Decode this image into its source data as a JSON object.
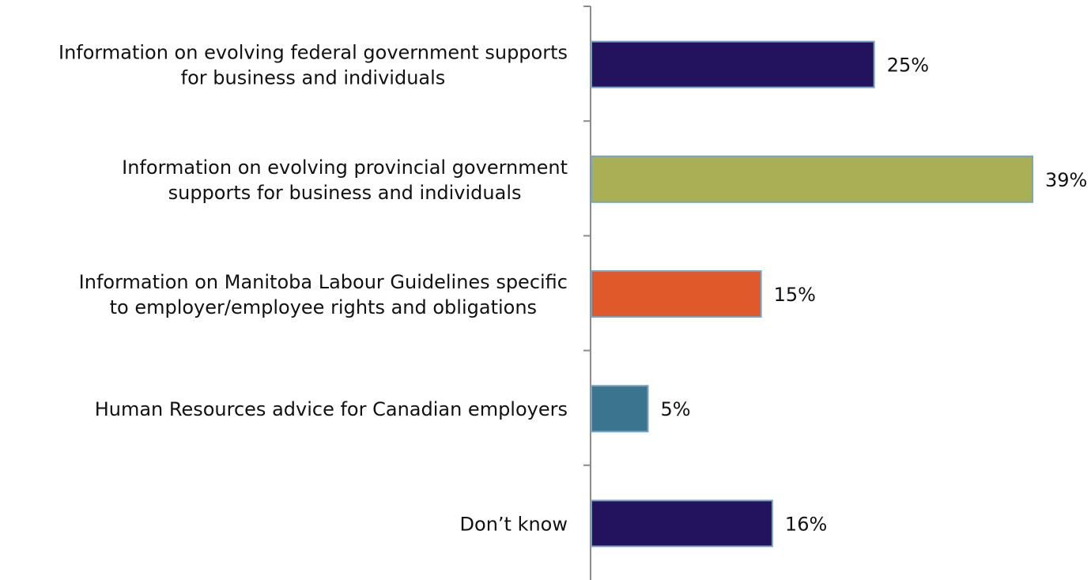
{
  "chart_data": {
    "type": "bar",
    "orientation": "horizontal",
    "categories": [
      [
        "Information on evolving federal government supports",
        "for business and individuals"
      ],
      [
        "Information on evolving provincial government",
        "supports for business and individuals"
      ],
      [
        "Information on Manitoba Labour Guidelines specific",
        "to employer/employee rights and obligations"
      ],
      [
        "Human Resources advice for Canadian employers"
      ],
      [
        "Don’t know"
      ]
    ],
    "values": [
      25,
      39,
      15,
      5,
      16
    ],
    "value_labels": [
      "25%",
      "39%",
      "15%",
      "5%",
      "16%"
    ],
    "bar_colors": [
      "#23135e",
      "#a8af55",
      "#e0592b",
      "#3b748f",
      "#23135e"
    ],
    "bar_border_color": "#7aa3c3",
    "axis_color": "#8c8c8c",
    "xlim": [
      0,
      39
    ],
    "title": "",
    "xlabel": "",
    "ylabel": "",
    "grid": false,
    "legend": false
  }
}
